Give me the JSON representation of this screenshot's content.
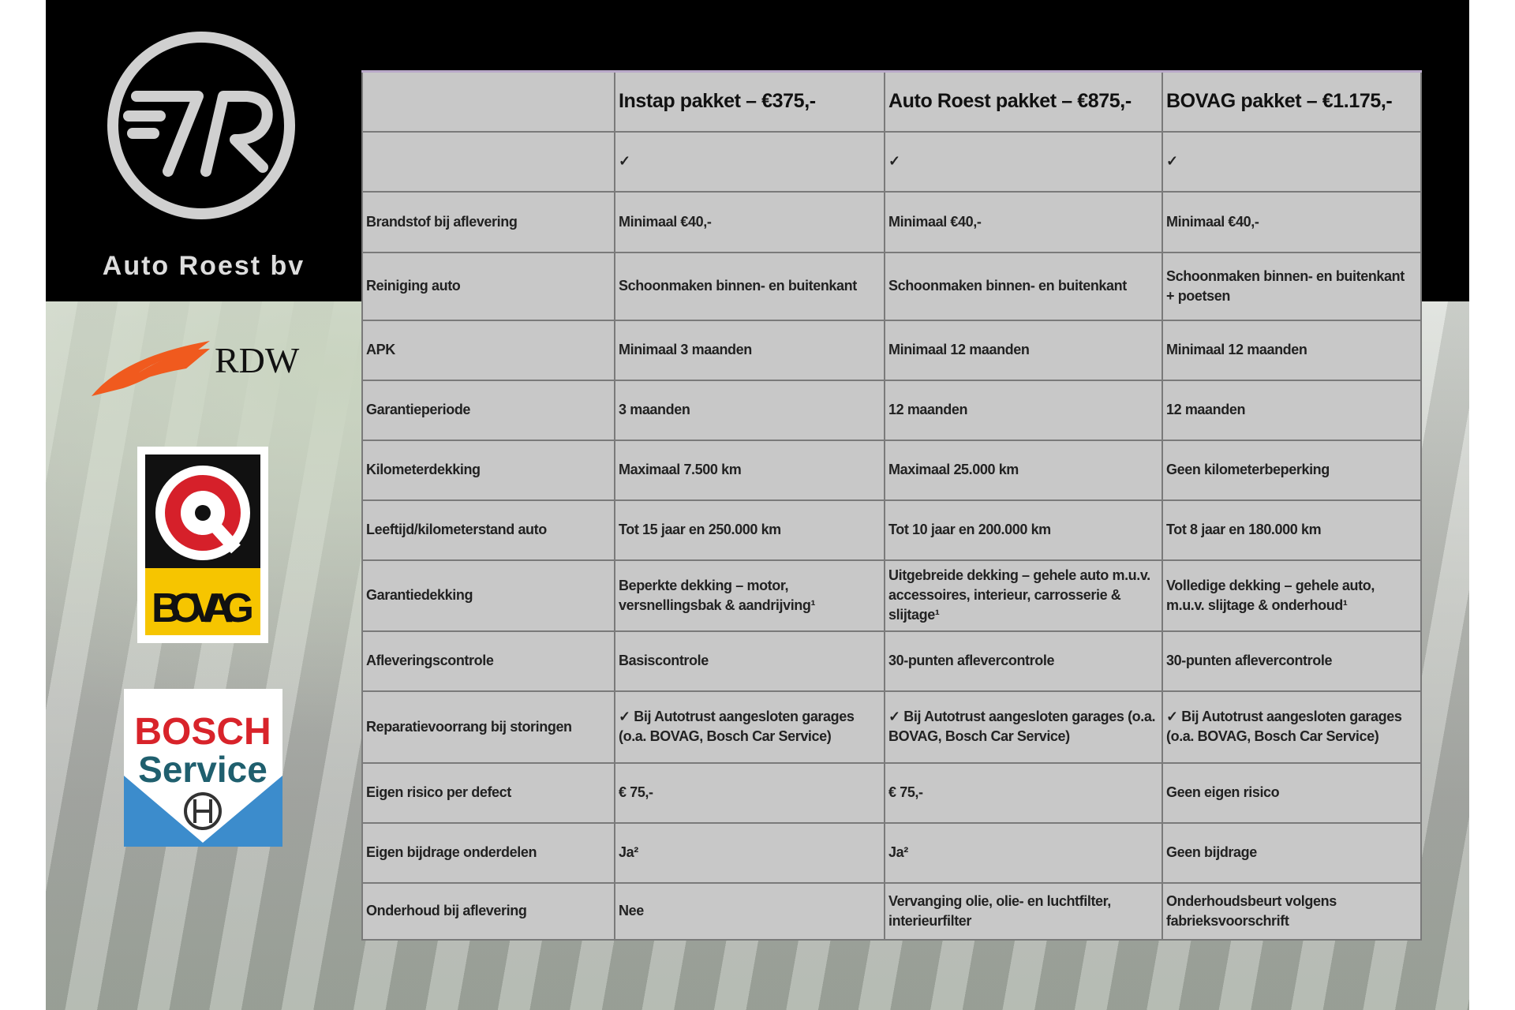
{
  "brand": {
    "name": "Auto Roest bv",
    "logo_text": "7R"
  },
  "partners": {
    "rdw": "RDW",
    "bovag": "BOVAG",
    "bosch_line1": "BOSCH",
    "bosch_line2": "Service"
  },
  "colors": {
    "rdw_orange": "#f05a1e",
    "bovag_yellow": "#f6c500",
    "bovag_red": "#d6202a",
    "bosch_red": "#d8232a",
    "bosch_blue": "#3c8ccc",
    "table_bg": "#c8c8c8"
  },
  "table": {
    "headers": [
      "",
      "Instap pakket – €375,-",
      "Auto Roest pakket – €875,-",
      "BOVAG pakket – €1.175,-"
    ],
    "rows": [
      [
        "",
        "✓",
        "✓",
        "✓"
      ],
      [
        "Brandstof bij aflevering",
        "Minimaal €40,-",
        "Minimaal €40,-",
        "Minimaal €40,-"
      ],
      [
        "Reiniging auto",
        "Schoonmaken binnen- en buitenkant",
        "Schoonmaken binnen- en buitenkant",
        "Schoonmaken binnen- en buitenkant + poetsen"
      ],
      [
        "APK",
        "Minimaal 3 maanden",
        "Minimaal 12 maanden",
        "Minimaal 12 maanden"
      ],
      [
        "Garantieperiode",
        "3 maanden",
        "12 maanden",
        "12 maanden"
      ],
      [
        "Kilometerdekking",
        "Maximaal 7.500 km",
        "Maximaal 25.000 km",
        "Geen kilometerbeperking"
      ],
      [
        "Leeftijd/kilometerstand auto",
        "Tot 15 jaar en 250.000 km",
        "Tot 10 jaar en 200.000 km",
        "Tot 8 jaar en 180.000 km"
      ],
      [
        "Garantiedekking",
        "Beperkte dekking – motor, versnellingsbak & aandrijving¹",
        "Uitgebreide dekking – gehele auto m.u.v. accessoires, interieur, carrosserie & slijtage¹",
        "Volledige dekking – gehele auto, m.u.v. slijtage & onderhoud¹"
      ],
      [
        "Afleveringscontrole",
        "Basiscontrole",
        "30-punten aflevercontrole",
        "30-punten aflevercontrole"
      ],
      [
        "Reparatievoorrang bij storingen",
        "✓ Bij Autotrust aangesloten garages (o.a. BOVAG, Bosch Car Service)",
        "✓ Bij Autotrust aangesloten garages (o.a. BOVAG, Bosch Car Service)",
        "✓ Bij Autotrust aangesloten garages (o.a. BOVAG, Bosch Car Service)"
      ],
      [
        "Eigen risico per defect",
        "€ 75,-",
        "€ 75,-",
        "Geen eigen risico"
      ],
      [
        "Eigen bijdrage onderdelen",
        "Ja²",
        "Ja²",
        "Geen bijdrage"
      ],
      [
        "Onderhoud bij aflevering",
        "Nee",
        "Vervanging olie, olie- en luchtfilter, interieurfilter",
        "Onderhoudsbeurt volgens fabrieksvoorschrift"
      ]
    ]
  }
}
